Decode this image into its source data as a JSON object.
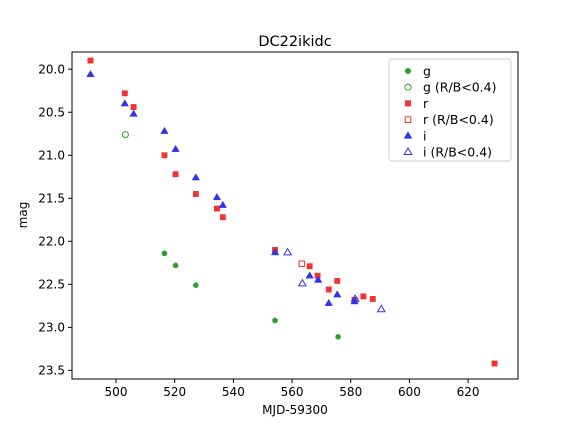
{
  "chart_data": {
    "type": "scatter",
    "title": "DC22ikidc",
    "xlabel": "MJD-59300",
    "ylabel": "mag",
    "xlim": [
      485,
      637
    ],
    "ylim": [
      23.6,
      19.8
    ],
    "y_inverted": true,
    "xticks": [
      "500",
      "520",
      "540",
      "560",
      "580",
      "600",
      "620"
    ],
    "yticks": [
      "20.0",
      "20.5",
      "21.0",
      "21.5",
      "22.0",
      "22.5",
      "23.0",
      "23.5"
    ],
    "grid": false,
    "legend_position": "upper right",
    "series": [
      {
        "name": "g",
        "color": "#2ca02c",
        "marker": "circle",
        "filled": true,
        "points": [
          [
            516.5,
            22.14
          ],
          [
            520.3,
            22.28
          ],
          [
            527.2,
            22.51
          ],
          [
            554.2,
            22.92
          ],
          [
            575.7,
            23.11
          ]
        ]
      },
      {
        "name": "g (R/B<0.4)",
        "color": "#2ca02c",
        "marker": "circle",
        "filled": false,
        "points": [
          [
            503.2,
            20.76
          ]
        ]
      },
      {
        "name": "r",
        "color": "#ee3333",
        "marker": "square",
        "filled": true,
        "points": [
          [
            491.3,
            19.9
          ],
          [
            503.0,
            20.28
          ],
          [
            506.0,
            20.44
          ],
          [
            516.5,
            21.0
          ],
          [
            520.3,
            21.22
          ],
          [
            527.2,
            21.45
          ],
          [
            534.4,
            21.62
          ],
          [
            536.4,
            21.72
          ],
          [
            554.2,
            22.1
          ],
          [
            566.0,
            22.29
          ],
          [
            568.7,
            22.4
          ],
          [
            572.5,
            22.56
          ],
          [
            575.4,
            22.46
          ],
          [
            581.3,
            22.68
          ],
          [
            584.3,
            22.64
          ],
          [
            587.5,
            22.67
          ],
          [
            629.0,
            23.42
          ]
        ]
      },
      {
        "name": "r (R/B<0.4)",
        "color": "#ee3333",
        "marker": "square",
        "filled": false,
        "points": [
          [
            563.3,
            22.26
          ]
        ]
      },
      {
        "name": "i",
        "color": "#3333ee",
        "marker": "triangle",
        "filled": true,
        "points": [
          [
            491.3,
            20.06
          ],
          [
            503.0,
            20.4
          ],
          [
            506.0,
            20.52
          ],
          [
            516.5,
            20.72
          ],
          [
            520.3,
            20.93
          ],
          [
            527.2,
            21.26
          ],
          [
            534.4,
            21.49
          ],
          [
            536.4,
            21.58
          ],
          [
            554.2,
            22.13
          ],
          [
            566.0,
            22.4
          ],
          [
            568.9,
            22.45
          ],
          [
            572.5,
            22.72
          ],
          [
            575.4,
            22.62
          ],
          [
            581.3,
            22.7
          ]
        ]
      },
      {
        "name": "i (R/B<0.4)",
        "color": "#3333ee",
        "marker": "triangle",
        "filled": false,
        "points": [
          [
            558.5,
            22.13
          ],
          [
            563.5,
            22.49
          ],
          [
            581.5,
            22.67
          ],
          [
            590.4,
            22.79
          ]
        ]
      }
    ]
  }
}
